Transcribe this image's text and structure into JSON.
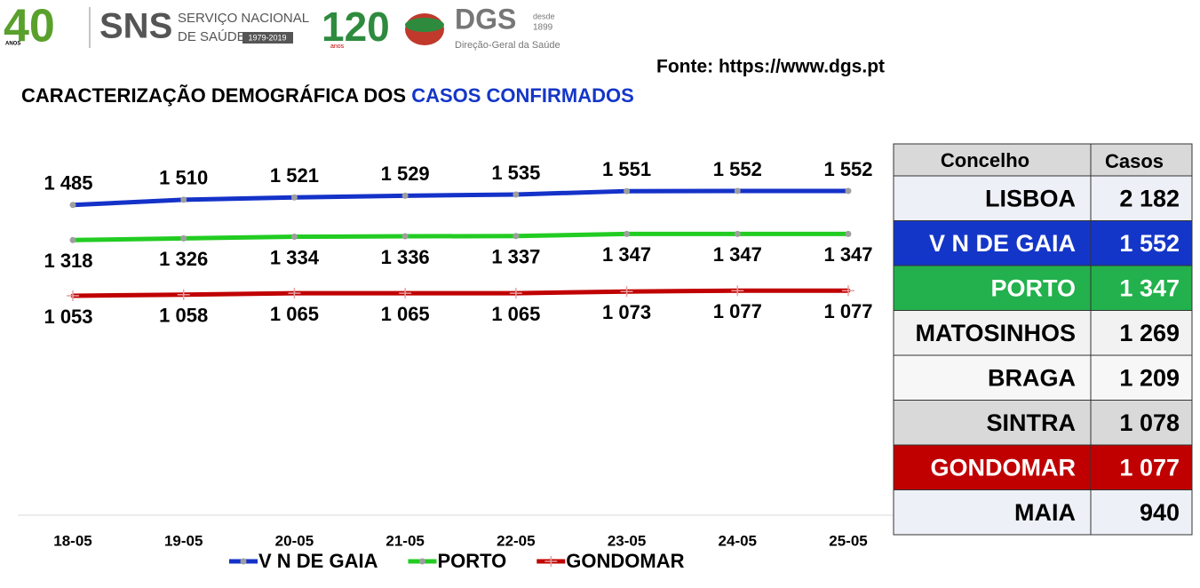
{
  "header": {
    "logo_40": "40",
    "logo_40_sub": "ANOS",
    "sns": "SNS",
    "sns_line1": "SERVIÇO NACIONAL",
    "sns_line2": "DE SAÚDE",
    "sns_years": "1979-2019",
    "logo_120": "120",
    "logo_120_sub": "anos",
    "dgs": "DGS",
    "dgs_since": "desde",
    "dgs_year": "1899",
    "dgs_name": "Direção-Geral da Saúde",
    "source": "Fonte: https://www.dgs.pt"
  },
  "heading": {
    "text": "CARACTERIZAÇÃO DEMOGRÁFICA DOS",
    "highlight": "CASOS CONFIRMADOS",
    "color": "#000000",
    "highlight_color": "#1436c8"
  },
  "chart_data": {
    "type": "line",
    "x": [
      "18-05",
      "19-05",
      "20-05",
      "21-05",
      "22-05",
      "23-05",
      "24-05",
      "25-05"
    ],
    "series": [
      {
        "name": "V N DE GAIA",
        "color": "#1432c8",
        "marker": "circle",
        "label_position": "above",
        "values": [
          1485,
          1510,
          1521,
          1529,
          1535,
          1551,
          1552,
          1552
        ],
        "value_labels": [
          "1 485",
          "1 510",
          "1 521",
          "1 529",
          "1 535",
          "1 551",
          "1 552",
          "1 552"
        ]
      },
      {
        "name": "PORTO",
        "color": "#22cc22",
        "marker": "circle",
        "label_position": "below",
        "values": [
          1318,
          1326,
          1334,
          1336,
          1337,
          1347,
          1347,
          1347
        ],
        "value_labels": [
          "1 318",
          "1 326",
          "1 334",
          "1 336",
          "1 337",
          "1 347",
          "1 347",
          "1 347"
        ]
      },
      {
        "name": "GONDOMAR",
        "color": "#c00000",
        "marker": "plus",
        "label_position": "below",
        "values": [
          1053,
          1058,
          1065,
          1065,
          1065,
          1073,
          1077,
          1077
        ],
        "value_labels": [
          "1 053",
          "1 058",
          "1 065",
          "1 065",
          "1 065",
          "1 073",
          "1 077",
          "1 077"
        ]
      }
    ],
    "legend": "bottom"
  },
  "table": {
    "header": [
      "Concelho",
      "Casos"
    ],
    "header_background": "#d9d9d9",
    "rows": [
      {
        "cells": [
          "LISBOA",
          "2 182"
        ],
        "background": "#eef0f7",
        "text_color": "#000000"
      },
      {
        "cells": [
          "V N DE GAIA",
          "1 552"
        ],
        "background": "#1436c8",
        "text_color": "#ffffff"
      },
      {
        "cells": [
          "PORTO",
          "1 347"
        ],
        "background": "#22b14c",
        "text_color": "#ffffff"
      },
      {
        "cells": [
          "MATOSINHOS",
          "1 269"
        ],
        "background": "#f2f2f2",
        "text_color": "#000000"
      },
      {
        "cells": [
          "BRAGA",
          "1 209"
        ],
        "background": "#f7f7f7",
        "text_color": "#000000"
      },
      {
        "cells": [
          "SINTRA",
          "1 078"
        ],
        "background": "#d9d9d9",
        "text_color": "#000000"
      },
      {
        "cells": [
          "GONDOMAR",
          "1 077"
        ],
        "background": "#c00000",
        "text_color": "#ffffff"
      },
      {
        "cells": [
          "MAIA",
          "940"
        ],
        "background": "#eef0f7",
        "text_color": "#000000"
      }
    ]
  }
}
